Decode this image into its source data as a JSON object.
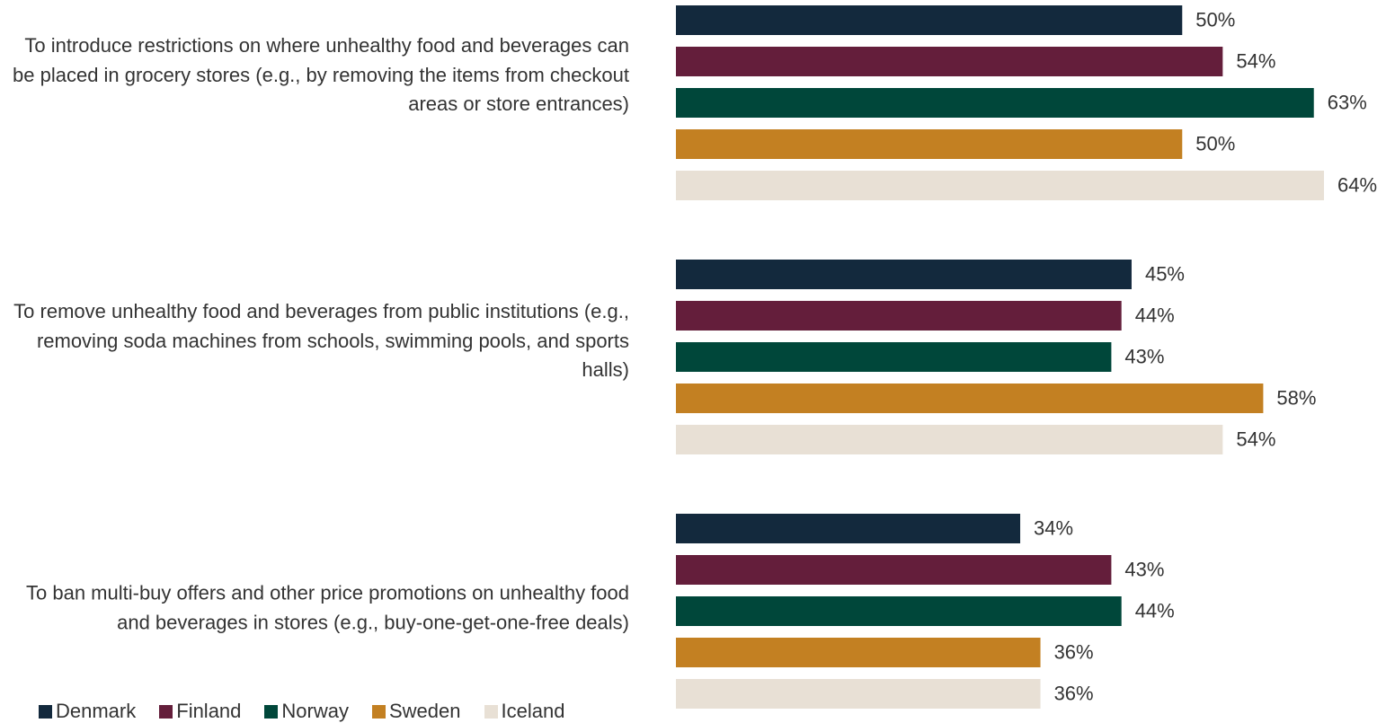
{
  "chart_data": {
    "type": "bar",
    "orientation": "horizontal",
    "categories": [
      "To introduce restrictions on where unhealthy food and beverages can be placed in grocery stores (e.g., by removing the items from checkout areas or store entrances)",
      "To remove unhealthy food and beverages from public institutions (e.g., removing soda machines from schools, swimming pools, and sports halls)",
      "To ban multi-buy offers and other price promotions on unhealthy food and beverages in stores (e.g., buy-one-get-one-free deals)"
    ],
    "series": [
      {
        "name": "Denmark",
        "color": "#13293d",
        "values": [
          50,
          45,
          34
        ],
        "value_labels": [
          "50%",
          "45%",
          "34%"
        ]
      },
      {
        "name": "Finland",
        "color": "#641e3b",
        "values": [
          54,
          44,
          43
        ],
        "value_labels": [
          "54%",
          "44%",
          "43%"
        ]
      },
      {
        "name": "Norway",
        "color": "#00473a",
        "values": [
          63,
          43,
          44
        ],
        "value_labels": [
          "63%",
          "43%",
          "44%"
        ]
      },
      {
        "name": "Sweden",
        "color": "#c38022",
        "values": [
          50,
          58,
          36
        ],
        "value_labels": [
          "50%",
          "58%",
          "36%"
        ]
      },
      {
        "name": "Iceland",
        "color": "#e8e0d5",
        "values": [
          64,
          54,
          36
        ],
        "value_labels": [
          "64%",
          "54%",
          "36%"
        ]
      }
    ],
    "legend": "bottom-left"
  }
}
